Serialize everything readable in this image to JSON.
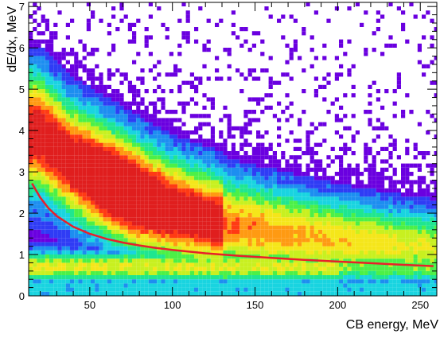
{
  "chart_data": {
    "type": "heatmap",
    "title": "",
    "xlabel": "CB energy, MeV",
    "ylabel": "dE/dx, MeV",
    "xlim": [
      13,
      260
    ],
    "ylim": [
      0,
      7.1
    ],
    "x_ticks": [
      50,
      100,
      150,
      200,
      250
    ],
    "y_ticks": [
      0,
      1,
      2,
      3,
      4,
      5,
      6,
      7
    ],
    "grid": false,
    "legend": "none",
    "colormap": [
      "#6a00e0",
      "#2f3cf5",
      "#1d8ef0",
      "#19d4e0",
      "#1fe690",
      "#4cf047",
      "#c8f020",
      "#f5e61a",
      "#ff9a12",
      "#ff3a14",
      "#e01e1e"
    ],
    "band_ridge": {
      "description_points_x": [
        20,
        40,
        60,
        80,
        100,
        130,
        160,
        200,
        250
      ],
      "dEdx_peak": [
        3.9,
        3.2,
        2.75,
        2.35,
        2.05,
        1.75,
        1.55,
        1.35,
        1.2
      ]
    },
    "fit_curve": {
      "name": "",
      "color": "#e8202a",
      "x": [
        15,
        20,
        25,
        30,
        40,
        50,
        60,
        70,
        80,
        90,
        100,
        120,
        140,
        160,
        180,
        200,
        220,
        240,
        258
      ],
      "y": [
        2.72,
        2.38,
        2.12,
        1.93,
        1.67,
        1.5,
        1.38,
        1.29,
        1.22,
        1.16,
        1.11,
        1.03,
        0.97,
        0.92,
        0.87,
        0.83,
        0.79,
        0.75,
        0.72
      ]
    }
  }
}
